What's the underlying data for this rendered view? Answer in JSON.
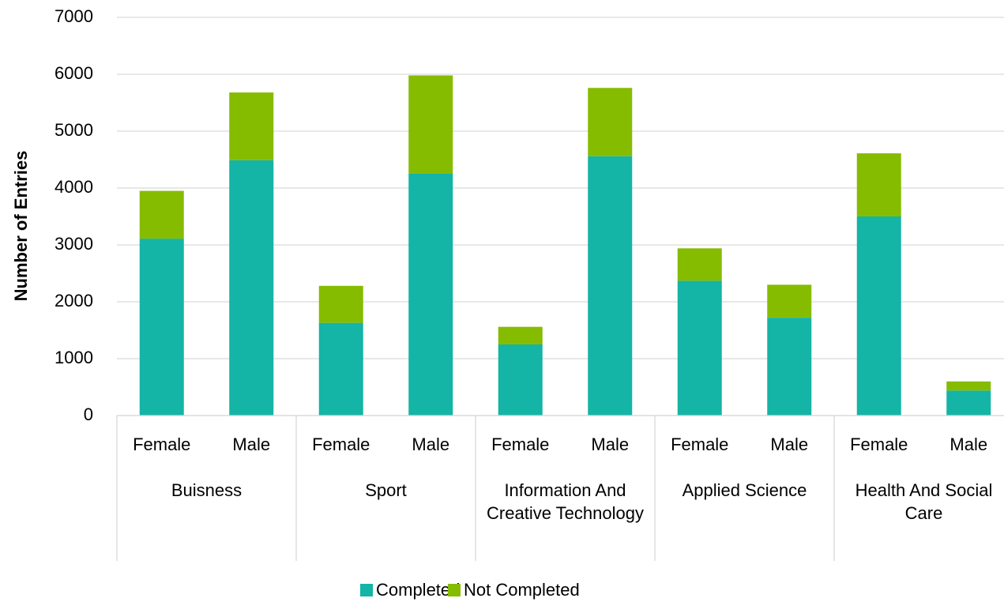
{
  "chart_data": {
    "type": "stacked_bar",
    "y_label": "Number of Entries",
    "categories": [
      "Female",
      "Male",
      "Female",
      "Male",
      "Female",
      "Male",
      "Female",
      "Male",
      "Female",
      "Male"
    ],
    "groups": [
      "Buisness",
      "Sport",
      "Information And Creative Technology",
      "Applied Science",
      "Health And Social Care"
    ],
    "series": [
      {
        "name": "Completed",
        "color": "#14b4a6",
        "values": [
          3110,
          4490,
          1630,
          4250,
          1250,
          4560,
          2370,
          1720,
          3500,
          440
        ]
      },
      {
        "name": "Not Completed",
        "color": "#86bc00",
        "values": [
          840,
          1190,
          650,
          1730,
          310,
          1200,
          570,
          580,
          1110,
          160
        ]
      }
    ],
    "ylim": [
      0,
      7000
    ],
    "yticks": [
      0,
      1000,
      2000,
      3000,
      4000,
      5000,
      6000,
      7000
    ],
    "grid": true,
    "legend": "bottom"
  }
}
